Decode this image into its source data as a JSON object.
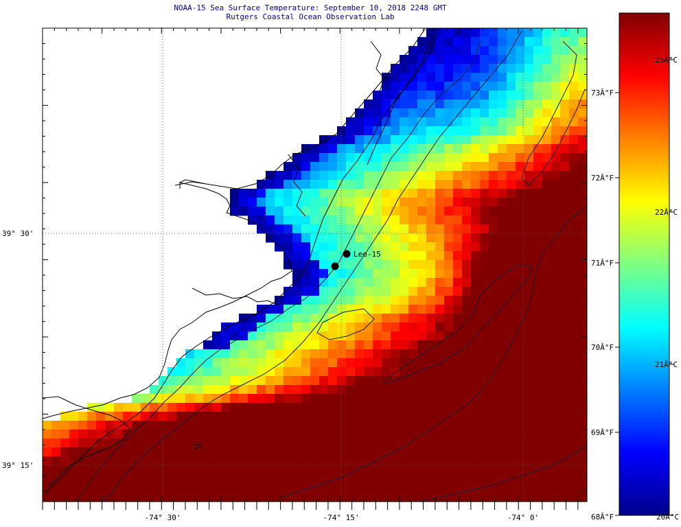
{
  "header": {
    "title": "NOAA-15 Sea Surface Temperature:  September 10, 2018 2248 GMT",
    "subtitle": "Rutgers Coastal Ocean Observation Lab"
  },
  "map": {
    "lon_ticks": [
      {
        "label": "-74° 30'",
        "lon": -74.5
      },
      {
        "label": "-74° 15'",
        "lon": -74.25
      },
      {
        "label": "-74° 0'",
        "lon": -74.0
      }
    ],
    "lat_ticks": [
      {
        "label": "39° 30'",
        "lat": 39.5
      },
      {
        "label": "39° 15'",
        "lat": 39.25
      }
    ],
    "station": {
      "label": "Leo-15"
    },
    "bathymetry_label": "15",
    "land_color": "#ffffff",
    "coast_color": "#000000"
  },
  "colorbar": {
    "fahrenheit_labels": [
      "73Â°F",
      "72Â°F",
      "71Â°F",
      "70Â°F",
      "69Â°F",
      "68Â°F"
    ],
    "celsius_labels": [
      "23Â°C",
      "22Â°C",
      "21Â°C",
      "20Â°C"
    ],
    "colormap": [
      "#00008b",
      "#0000ff",
      "#0080ff",
      "#00ffff",
      "#80ff80",
      "#ffff00",
      "#ff8000",
      "#ff0000",
      "#800000"
    ],
    "range_celsius": [
      20.0,
      23.6
    ]
  }
}
